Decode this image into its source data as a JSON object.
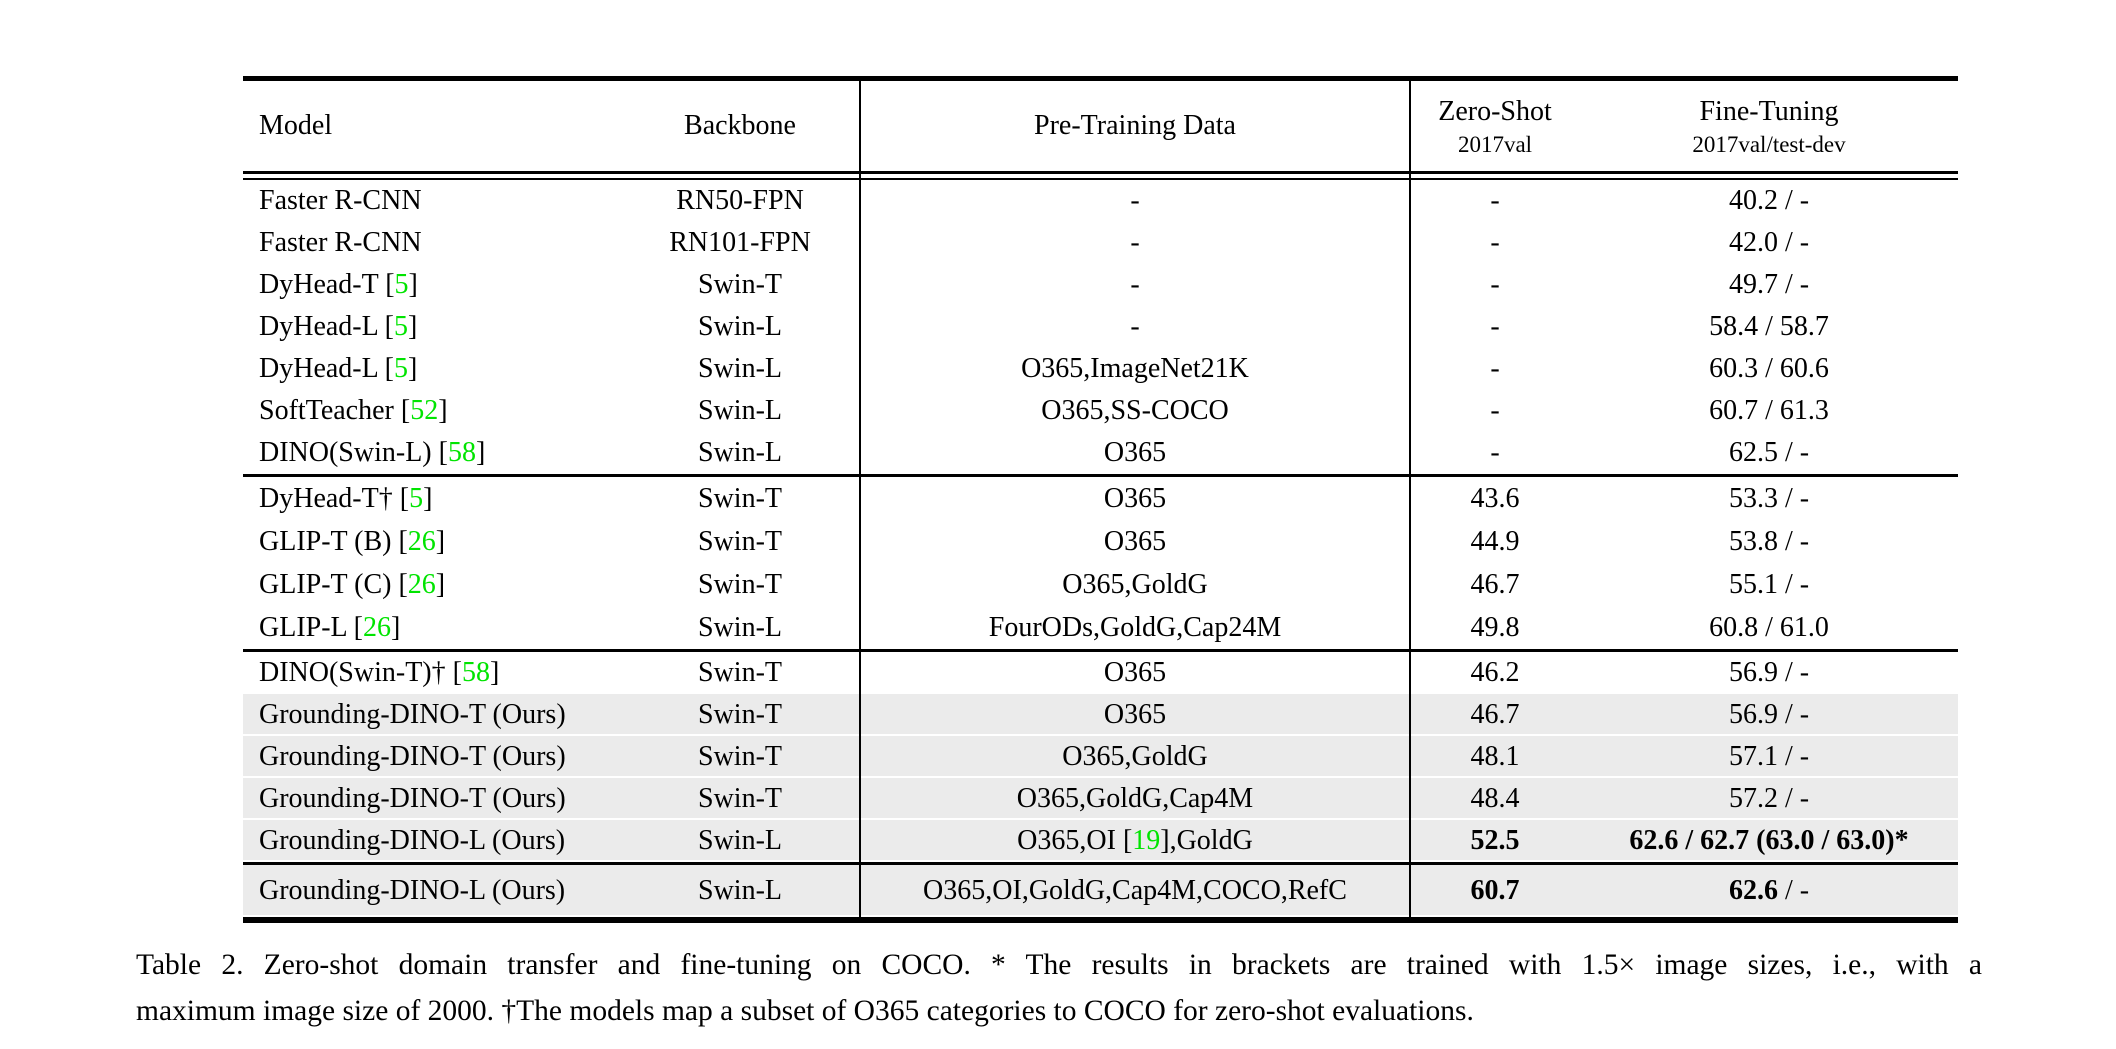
{
  "paper_table": {
    "header": {
      "model": "Model",
      "backbone": "Backbone",
      "pretrain": "Pre-Training Data",
      "zeroshot_title": "Zero-Shot",
      "zeroshot_sub": "2017val",
      "finetune_title": "Fine-Tuning",
      "finetune_sub": "2017val/test-dev"
    },
    "sections": [
      {
        "rows": [
          {
            "model": [
              {
                "t": "Faster R-CNN"
              }
            ],
            "backbone": "RN50-FPN",
            "pretrain": "-",
            "zeroshot": "-",
            "finetune": "40.2 / -",
            "highlight": false
          },
          {
            "model": [
              {
                "t": "Faster R-CNN"
              }
            ],
            "backbone": "RN101-FPN",
            "pretrain": "-",
            "zeroshot": "-",
            "finetune": "42.0 / -",
            "highlight": false
          },
          {
            "model": [
              {
                "t": "DyHead-T ["
              },
              {
                "t": "5",
                "g": true
              },
              {
                "t": "]"
              }
            ],
            "backbone": "Swin-T",
            "pretrain": "-",
            "zeroshot": "-",
            "finetune": "49.7 / -",
            "highlight": false
          },
          {
            "model": [
              {
                "t": "DyHead-L ["
              },
              {
                "t": "5",
                "g": true
              },
              {
                "t": "]"
              }
            ],
            "backbone": "Swin-L",
            "pretrain": "-",
            "zeroshot": "-",
            "finetune": "58.4 / 58.7",
            "highlight": false
          },
          {
            "model": [
              {
                "t": "DyHead-L ["
              },
              {
                "t": "5",
                "g": true
              },
              {
                "t": "]"
              }
            ],
            "backbone": "Swin-L",
            "pretrain": "O365,ImageNet21K",
            "zeroshot": "-",
            "finetune": "60.3 / 60.6",
            "highlight": false
          },
          {
            "model": [
              {
                "t": "SoftTeacher ["
              },
              {
                "t": "52",
                "g": true
              },
              {
                "t": "]"
              }
            ],
            "backbone": "Swin-L",
            "pretrain": "O365,SS-COCO",
            "zeroshot": "-",
            "finetune": "60.7 / 61.3",
            "highlight": false
          },
          {
            "model": [
              {
                "t": "DINO(Swin-L) ["
              },
              {
                "t": "58",
                "g": true
              },
              {
                "t": "]"
              }
            ],
            "backbone": "Swin-L",
            "pretrain": "O365",
            "zeroshot": "-",
            "finetune": "62.5 / -",
            "highlight": false
          }
        ]
      },
      {
        "rows": [
          {
            "model": [
              {
                "t": "DyHead-T† ["
              },
              {
                "t": "5",
                "g": true
              },
              {
                "t": "]"
              }
            ],
            "backbone": "Swin-T",
            "pretrain": "O365",
            "zeroshot": "43.6",
            "finetune": "53.3 / -",
            "highlight": false
          },
          {
            "model": [
              {
                "t": "GLIP-T (B) ["
              },
              {
                "t": "26",
                "g": true
              },
              {
                "t": "]"
              }
            ],
            "backbone": "Swin-T",
            "pretrain": "O365",
            "zeroshot": "44.9",
            "finetune": "53.8 / -",
            "highlight": false
          },
          {
            "model": [
              {
                "t": "GLIP-T (C) ["
              },
              {
                "t": "26",
                "g": true
              },
              {
                "t": "]"
              }
            ],
            "backbone": "Swin-T",
            "pretrain": "O365,GoldG",
            "zeroshot": "46.7",
            "finetune": "55.1 / -",
            "highlight": false
          },
          {
            "model": [
              {
                "t": "GLIP-L ["
              },
              {
                "t": "26",
                "g": true
              },
              {
                "t": "]"
              }
            ],
            "backbone": "Swin-L",
            "pretrain": "FourODs,GoldG,Cap24M",
            "zeroshot": "49.8",
            "finetune": "60.8 / 61.0",
            "highlight": false
          }
        ]
      },
      {
        "rows": [
          {
            "model": [
              {
                "t": "DINO(Swin-T)† ["
              },
              {
                "t": "58",
                "g": true
              },
              {
                "t": "]"
              }
            ],
            "backbone": "Swin-T",
            "pretrain": "O365",
            "zeroshot": "46.2",
            "finetune": "56.9 / -",
            "highlight": false
          },
          {
            "model": [
              {
                "t": "Grounding-DINO-T (Ours)"
              }
            ],
            "backbone": "Swin-T",
            "pretrain": "O365",
            "zeroshot": "46.7",
            "finetune": "56.9 / -",
            "highlight": true
          },
          {
            "model": [
              {
                "t": "Grounding-DINO-T (Ours)"
              }
            ],
            "backbone": "Swin-T",
            "pretrain": "O365,GoldG",
            "zeroshot": "48.1",
            "finetune": "57.1 / -",
            "highlight": true
          },
          {
            "model": [
              {
                "t": "Grounding-DINO-T (Ours)"
              }
            ],
            "backbone": "Swin-T",
            "pretrain": "O365,GoldG,Cap4M",
            "zeroshot": "48.4",
            "finetune": "57.2 / -",
            "highlight": true
          },
          {
            "model": [
              {
                "t": "Grounding-DINO-L (Ours)"
              }
            ],
            "backbone": "Swin-L",
            "pretrain": [
              {
                "t": "O365,OI ["
              },
              {
                "t": "19",
                "g": true
              },
              {
                "t": "],GoldG"
              }
            ],
            "zeroshot": [
              {
                "t": "52.5",
                "b": true
              }
            ],
            "finetune": [
              {
                "t": "62.6 / 62.7 (63.0 / 63.0)*",
                "b": true
              }
            ],
            "highlight": true
          }
        ]
      },
      {
        "rows": [
          {
            "model": [
              {
                "t": "Grounding-DINO-L (Ours)"
              }
            ],
            "backbone": "Swin-L",
            "pretrain": "O365,OI,GoldG,Cap4M,COCO,RefC",
            "zeroshot": [
              {
                "t": "60.7",
                "b": true
              }
            ],
            "finetune": [
              {
                "t": "62.6",
                "b": true
              },
              {
                "t": " / -"
              }
            ],
            "highlight": true
          }
        ]
      }
    ]
  },
  "caption": {
    "line1": "Table 2. Zero-shot domain transfer and fine-tuning on COCO. * The results in brackets are trained with 1.5× image sizes, i.e., with a",
    "line2": "maximum image size of 2000. †The models map a subset of O365 categories to COCO for zero-shot evaluations."
  },
  "colors": {
    "citation": "#00E400",
    "highlight": "#EBEBEB"
  }
}
